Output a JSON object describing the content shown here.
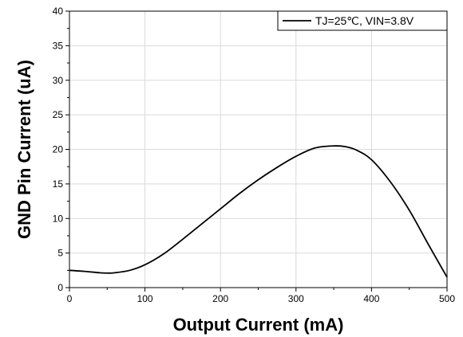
{
  "chart_data": {
    "type": "line",
    "title": "",
    "xlabel": "Output Current (mA)",
    "ylabel": "GND Pin Current (uA)",
    "xlim": [
      0,
      500
    ],
    "ylim": [
      0,
      40
    ],
    "xticks": [
      0,
      100,
      200,
      300,
      400,
      500
    ],
    "yticks": [
      0,
      5,
      10,
      15,
      20,
      25,
      30,
      35,
      40
    ],
    "grid": true,
    "legend_position": "top-right",
    "series": [
      {
        "name": "TJ=25℃, VIN=3.8V",
        "color": "#000000",
        "x": [
          0,
          20,
          40,
          50,
          60,
          80,
          100,
          125,
          150,
          175,
          200,
          225,
          250,
          275,
          300,
          325,
          350,
          365,
          380,
          400,
          425,
          450,
          475,
          500
        ],
        "y": [
          2.5,
          2.35,
          2.15,
          2.1,
          2.15,
          2.5,
          3.3,
          4.9,
          7.0,
          9.2,
          11.4,
          13.6,
          15.6,
          17.4,
          19.0,
          20.2,
          20.5,
          20.4,
          19.9,
          18.5,
          15.3,
          11.2,
          6.3,
          1.5
        ]
      }
    ]
  }
}
